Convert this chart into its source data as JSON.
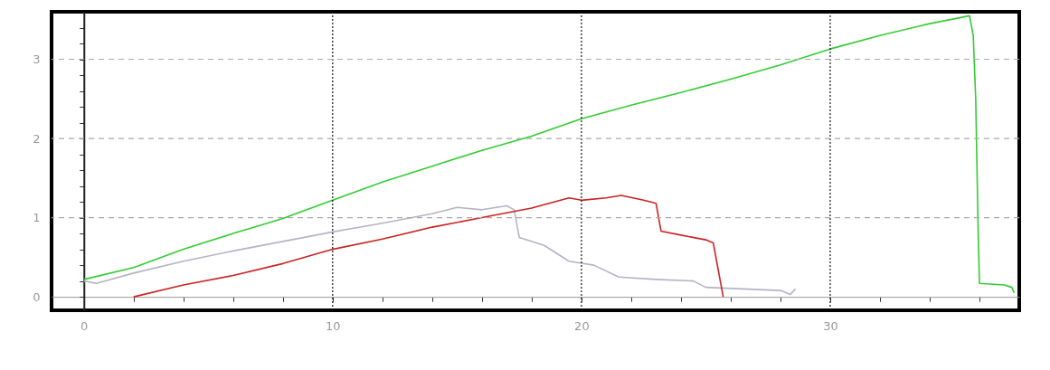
{
  "chart_data": {
    "type": "line",
    "xlim": [
      -1.3,
      37.6
    ],
    "ylim": [
      -0.17,
      3.6
    ],
    "xticks": [
      0,
      {
        "value": 2,
        "label": null
      },
      {
        "value": 4,
        "label": null
      },
      {
        "value": 6,
        "label": null
      },
      {
        "value": 8,
        "label": null
      },
      10,
      {
        "value": 12,
        "label": null
      },
      {
        "value": 14,
        "label": null
      },
      {
        "value": 16,
        "label": null
      },
      {
        "value": 18,
        "label": null
      },
      20,
      {
        "value": 22,
        "label": null
      },
      {
        "value": 24,
        "label": null
      },
      {
        "value": 26,
        "label": null
      },
      {
        "value": 28,
        "label": null
      },
      30,
      {
        "value": 32,
        "label": null
      },
      {
        "value": 34,
        "label": null
      },
      {
        "value": 36,
        "label": null
      }
    ],
    "yticks": [
      0,
      {
        "value": 0.2,
        "label": null
      },
      {
        "value": 0.4,
        "label": null
      },
      {
        "value": 0.6,
        "label": null
      },
      {
        "value": 0.8,
        "label": null
      },
      1,
      {
        "value": 1.2,
        "label": null
      },
      {
        "value": 1.4,
        "label": null
      },
      {
        "value": 1.6,
        "label": null
      },
      {
        "value": 1.8,
        "label": null
      },
      2,
      {
        "value": 2.2,
        "label": null
      },
      {
        "value": 2.4,
        "label": null
      },
      {
        "value": 2.6,
        "label": null
      },
      {
        "value": 2.8,
        "label": null
      },
      3,
      {
        "value": 3.2,
        "label": null
      },
      {
        "value": 3.4,
        "label": null
      }
    ],
    "grid": true,
    "legend": false,
    "line_style": "solid",
    "marker": "none",
    "series": [
      {
        "color": "#33cc33",
        "x": [
          0,
          2,
          4,
          6,
          8,
          10,
          12,
          14,
          16,
          18,
          20,
          22,
          24,
          26,
          28,
          30,
          32,
          34,
          35.3,
          35.6,
          35.75,
          35.85,
          35.95,
          36.0,
          37.0,
          37.3,
          37.4
        ],
        "values": [
          0.22,
          0.37,
          0.6,
          0.8,
          0.99,
          1.22,
          1.45,
          1.65,
          1.85,
          2.03,
          2.25,
          2.42,
          2.58,
          2.75,
          2.93,
          3.13,
          3.3,
          3.45,
          3.53,
          3.55,
          3.3,
          2.5,
          0.8,
          0.17,
          0.15,
          0.12,
          0.05
        ]
      },
      {
        "color": "#b4b4c4",
        "x": [
          0,
          0.5,
          2,
          4,
          6,
          8,
          10,
          12,
          14,
          15,
          16,
          17,
          17.3,
          17.5,
          18.5,
          19.5,
          20.5,
          21.5,
          23,
          24.5,
          25,
          26.5,
          28,
          28.4,
          28.6
        ],
        "values": [
          0.2,
          0.17,
          0.3,
          0.45,
          0.58,
          0.7,
          0.82,
          0.93,
          1.05,
          1.13,
          1.1,
          1.15,
          1.1,
          0.75,
          0.65,
          0.45,
          0.4,
          0.25,
          0.22,
          0.2,
          0.12,
          0.1,
          0.08,
          0.03,
          0.1
        ]
      },
      {
        "color": "#cc2222",
        "x": [
          2,
          4,
          6,
          8,
          10,
          12,
          14,
          16,
          18,
          19.5,
          20,
          21,
          21.6,
          22.5,
          23.0,
          23.2,
          24,
          25,
          25.3,
          25.7
        ],
        "values": [
          0,
          0.15,
          0.27,
          0.42,
          0.6,
          0.73,
          0.88,
          1.0,
          1.12,
          1.25,
          1.22,
          1.25,
          1.28,
          1.22,
          1.18,
          0.83,
          0.78,
          0.72,
          0.68,
          0.0
        ]
      }
    ]
  }
}
